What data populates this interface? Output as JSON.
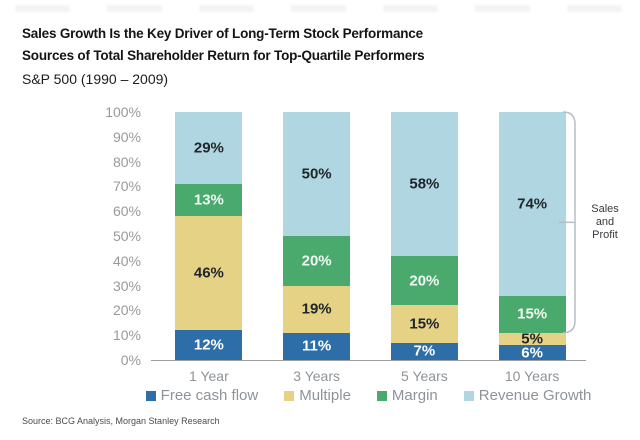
{
  "header": {
    "title_line1": "Sales Growth Is the Key Driver of Long-Term Stock Performance",
    "title_line2": "Sources of Total Shareholder Return for Top-Quartile Performers",
    "subtitle": "S&P 500 (1990 – 2009)"
  },
  "chart_data": {
    "type": "bar",
    "stacked": true,
    "title": "Sources of Total Shareholder Return for Top-Quartile Performers, S&P 500 (1990 – 2009)",
    "categories": [
      "1 Year",
      "3 Years",
      "5 Years",
      "10 Years"
    ],
    "series": [
      {
        "name": "Free cash flow",
        "color": "#2d6da8",
        "label_color": "#ffffff",
        "values": [
          12,
          11,
          7,
          6
        ]
      },
      {
        "name": "Multiple",
        "color": "#e5d285",
        "label_color": "#20262b",
        "values": [
          46,
          19,
          15,
          5
        ]
      },
      {
        "name": "Margin",
        "color": "#4aa96c",
        "label_color": "#f2f9f3",
        "values": [
          13,
          20,
          20,
          15
        ]
      },
      {
        "name": "Revenue Growth",
        "color": "#b0d7e1",
        "label_color": "#20262b",
        "values": [
          29,
          50,
          58,
          74
        ]
      }
    ],
    "value_suffix": "%",
    "ylim": [
      0,
      100
    ],
    "ytick_step": 10,
    "ytick_suffix": "%",
    "grid": false,
    "legend_position": "bottom",
    "annotation": {
      "bracket_label_lines": [
        "Sales",
        "and",
        "Profit"
      ],
      "bracket_range": [
        11,
        100
      ]
    }
  },
  "footer": {
    "source": "Source: BCG Analysis, Morgan Stanley Research"
  }
}
